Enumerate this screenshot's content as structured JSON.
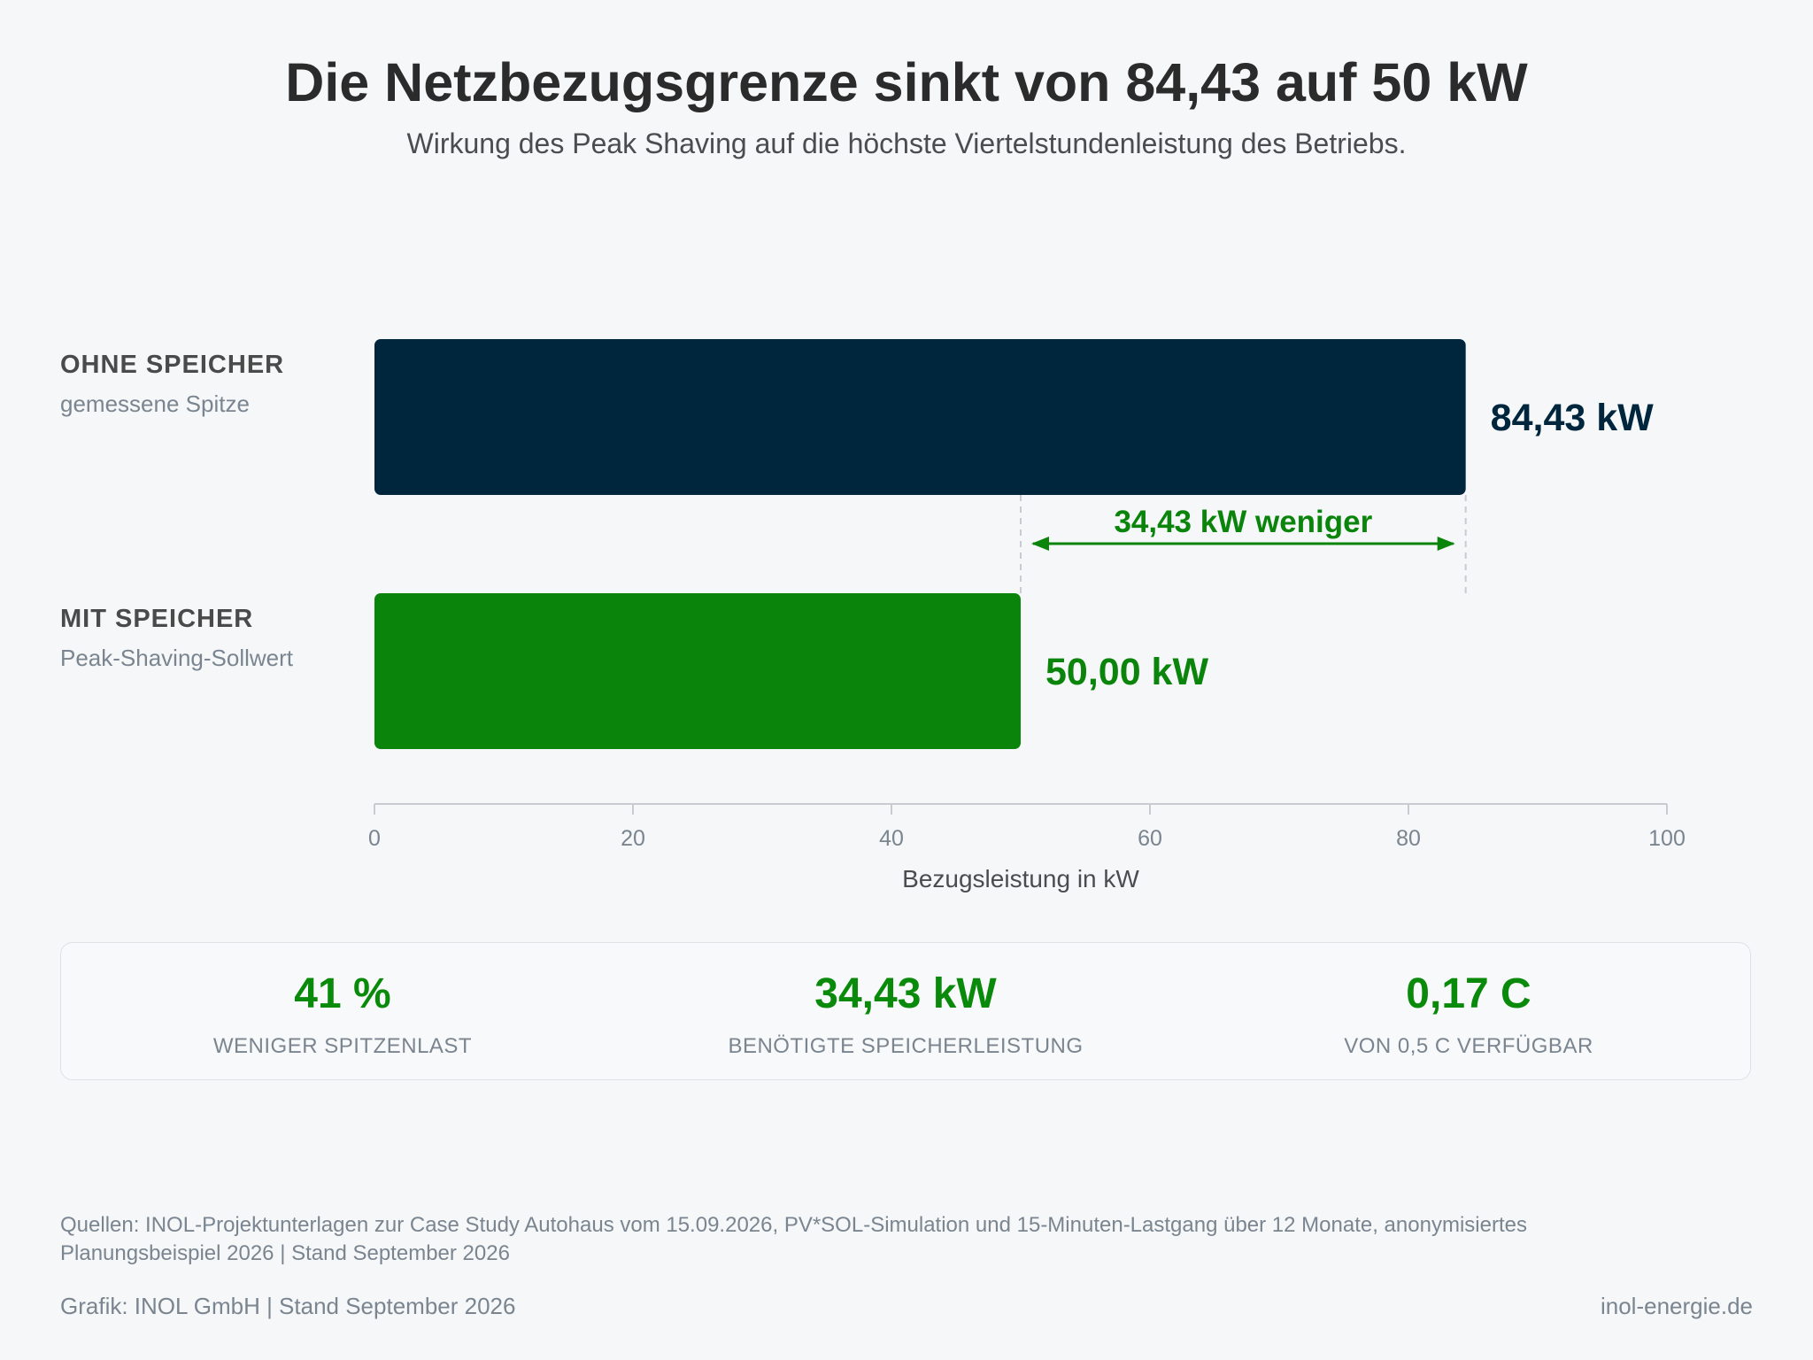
{
  "header": {
    "title": "Die Netzbezugsgrenze sinkt von 84,43 auf 50 kW",
    "subtitle": "Wirkung des Peak Shaving auf die höchste Viertelstundenleistung des Betriebs."
  },
  "rows": [
    {
      "name": "OHNE SPEICHER",
      "desc": "gemessene Spitze"
    },
    {
      "name": "MIT SPEICHER",
      "desc": "Peak-Shaving-Sollwert"
    }
  ],
  "chart_data": {
    "type": "bar",
    "orientation": "horizontal",
    "categories": [
      "OHNE SPEICHER",
      "MIT SPEICHER"
    ],
    "values": [
      84.43,
      50.0
    ],
    "value_labels": [
      "84,43 kW",
      "50,00 kW"
    ],
    "colors": [
      "#00263d",
      "#0a840a"
    ],
    "xlabel": "Bezugsleistung in kW",
    "xlim": [
      0,
      100
    ],
    "xticks": [
      0,
      20,
      40,
      60,
      80,
      100
    ],
    "annotation": {
      "text": "34,43 kW weniger",
      "from": 50.0,
      "to": 84.43,
      "color": "#0a840a"
    }
  },
  "kpis": [
    {
      "value": "41 %",
      "label": "WENIGER SPITZENLAST"
    },
    {
      "value": "34,43 kW",
      "label": "BENÖTIGTE SPEICHERLEISTUNG"
    },
    {
      "value": "0,17 C",
      "label": "VON 0,5 C VERFÜGBAR"
    }
  ],
  "footer": {
    "sources": "Quellen: INOL-Projektunterlagen zur Case Study Autohaus vom 15.09.2026, PV*SOL-Simulation und 15-Minuten-Lastgang über 12 Monate, anonymisiertes Planungsbeispiel 2026 | Stand September 2026",
    "credit": "Grafik: INOL GmbH | Stand September 2026",
    "website": "inol-energie.de"
  }
}
